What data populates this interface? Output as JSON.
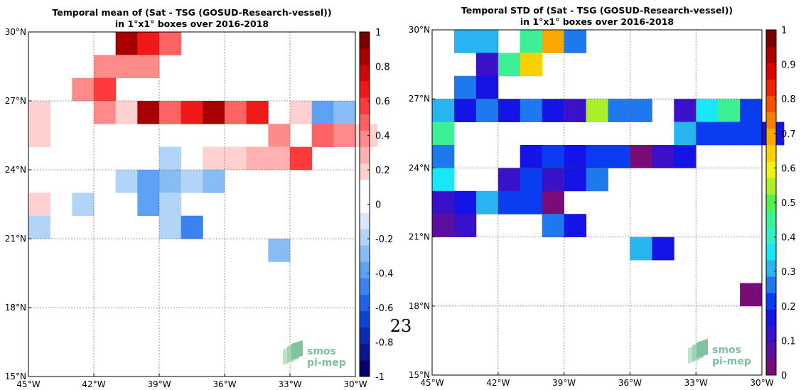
{
  "page_number": "23",
  "logo": {
    "line1": "smos",
    "line2": "pi-mep"
  },
  "chart_data": [
    {
      "type": "heatmap",
      "title": "Temporal mean of (Sat - TSG (GOSUD-Research-vessel))",
      "subtitle": "in 1°x1° boxes over 2016-2018",
      "xlim": [
        -45,
        -30
      ],
      "ylim": [
        15,
        30
      ],
      "x_tick_labels": [
        "45°W",
        "42°W",
        "39°W",
        "36°W",
        "33°W",
        "30°W"
      ],
      "y_tick_labels": [
        "15°N",
        "18°N",
        "21°N",
        "24°N",
        "27°N",
        "30°N"
      ],
      "grid": true,
      "colorbar": {
        "ticks": [
          -1,
          -0.8,
          -0.6,
          -0.4,
          -0.2,
          0,
          0.2,
          0.4,
          0.6,
          0.8,
          1
        ],
        "tick_labels": [
          "-1",
          "-0.8",
          "-0.6",
          "-0.4",
          "-0.2",
          "0",
          "0.2",
          "0.4",
          "0.6",
          "0.8",
          "1"
        ],
        "vmin": -1,
        "vmax": 1,
        "colors": [
          "#08006b",
          "#0a1690",
          "#0a2cb0",
          "#0a45cf",
          "#1e64e6",
          "#3c82ee",
          "#5ea0f2",
          "#88bcf5",
          "#b2d4f7",
          "#d8e8fb",
          "#ffffff",
          "#ffffff",
          "#ffd0d0",
          "#ffb0b0",
          "#ff8a8a",
          "#ff6262",
          "#ff3a3a",
          "#f01818",
          "#d00808",
          "#a80000",
          "#7a0000"
        ]
      },
      "cells": [
        {
          "lon": -41,
          "lat": 29,
          "v": 0.85
        },
        {
          "lon": -40,
          "lat": 29,
          "v": 0.7
        },
        {
          "lon": -39,
          "lat": 29,
          "v": 0.45
        },
        {
          "lon": -42,
          "lat": 28,
          "v": 0.35
        },
        {
          "lon": -41,
          "lat": 28,
          "v": 0.4
        },
        {
          "lon": -40,
          "lat": 28,
          "v": 0.4
        },
        {
          "lon": -43,
          "lat": 27,
          "v": 0.35
        },
        {
          "lon": -42,
          "lat": 27,
          "v": 0.6
        },
        {
          "lon": -45,
          "lat": 26,
          "v": 0.15
        },
        {
          "lon": -42,
          "lat": 26,
          "v": 0.35
        },
        {
          "lon": -41,
          "lat": 26,
          "v": 0.2
        },
        {
          "lon": -40,
          "lat": 26,
          "v": 0.85
        },
        {
          "lon": -39,
          "lat": 26,
          "v": 0.5
        },
        {
          "lon": -38,
          "lat": 26,
          "v": 0.65
        },
        {
          "lon": -37,
          "lat": 26,
          "v": 0.85
        },
        {
          "lon": -36,
          "lat": 26,
          "v": 0.5
        },
        {
          "lon": -35,
          "lat": 26,
          "v": 0.65
        },
        {
          "lon": -33,
          "lat": 26,
          "v": 0.15
        },
        {
          "lon": -32,
          "lat": 26,
          "v": -0.35
        },
        {
          "lon": -31,
          "lat": 26,
          "v": -0.25
        },
        {
          "lon": -45,
          "lat": 25,
          "v": 0.15
        },
        {
          "lon": -34,
          "lat": 25,
          "v": 0.35
        },
        {
          "lon": -32,
          "lat": 25,
          "v": 0.45
        },
        {
          "lon": -31,
          "lat": 25,
          "v": 0.35
        },
        {
          "lon": -30,
          "lat": 25,
          "v": 0.2
        },
        {
          "lon": -39,
          "lat": 24,
          "v": -0.15
        },
        {
          "lon": -37,
          "lat": 24,
          "v": 0.15
        },
        {
          "lon": -36,
          "lat": 24,
          "v": 0.15
        },
        {
          "lon": -35,
          "lat": 24,
          "v": 0.25
        },
        {
          "lon": -34,
          "lat": 24,
          "v": 0.25
        },
        {
          "lon": -33,
          "lat": 24,
          "v": 0.6
        },
        {
          "lon": -41,
          "lat": 23,
          "v": -0.15
        },
        {
          "lon": -40,
          "lat": 23,
          "v": -0.35
        },
        {
          "lon": -39,
          "lat": 23,
          "v": -0.25
        },
        {
          "lon": -38,
          "lat": 23,
          "v": -0.15
        },
        {
          "lon": -37,
          "lat": 23,
          "v": -0.25
        },
        {
          "lon": -45,
          "lat": 22,
          "v": 0.15
        },
        {
          "lon": -43,
          "lat": 22,
          "v": -0.15
        },
        {
          "lon": -40,
          "lat": 22,
          "v": -0.35
        },
        {
          "lon": -39,
          "lat": 22,
          "v": -0.15
        },
        {
          "lon": -45,
          "lat": 21,
          "v": -0.15
        },
        {
          "lon": -39,
          "lat": 21,
          "v": -0.15
        },
        {
          "lon": -38,
          "lat": 21,
          "v": -0.45
        },
        {
          "lon": -34,
          "lat": 20,
          "v": -0.25
        }
      ]
    },
    {
      "type": "heatmap",
      "title": "Temporal STD of (Sat - TSG (GOSUD-Research-vessel))",
      "subtitle": "in 1°x1° boxes over 2016-2018",
      "xlim": [
        -45,
        -30
      ],
      "ylim": [
        15,
        30
      ],
      "x_tick_labels": [
        "45°W",
        "42°W",
        "39°W",
        "36°W",
        "33°W",
        "30°W"
      ],
      "y_tick_labels": [
        "15°N",
        "18°N",
        "21°N",
        "24°N",
        "27°N",
        "30°N"
      ],
      "grid": true,
      "colorbar": {
        "ticks": [
          0,
          0.1,
          0.2,
          0.3,
          0.4,
          0.5,
          0.6,
          0.7,
          0.8,
          0.9,
          1
        ],
        "tick_labels": [
          "0",
          "0.1",
          "0.2",
          "0.3",
          "0.4",
          "0.5",
          "0.6",
          "0.7",
          "0.8",
          "0.9",
          "1"
        ],
        "vmin": 0,
        "vmax": 1,
        "colors": [
          "#7a0c7a",
          "#5a0fa0",
          "#3a10c8",
          "#1414e6",
          "#0a3cf0",
          "#1e78ee",
          "#28b4f0",
          "#18e8f5",
          "#30f0c8",
          "#3cf096",
          "#50f050",
          "#aaf028",
          "#f0f014",
          "#f8d000",
          "#f8a800",
          "#f88000",
          "#f85000",
          "#f02000",
          "#d80000",
          "#a80000",
          "#780000"
        ]
      },
      "cells": [
        {
          "lon": -44,
          "lat": 29,
          "v": 0.33
        },
        {
          "lon": -43,
          "lat": 29,
          "v": 0.33
        },
        {
          "lon": -41,
          "lat": 29,
          "v": 0.43
        },
        {
          "lon": -40,
          "lat": 29,
          "v": 0.67
        },
        {
          "lon": -39,
          "lat": 29,
          "v": 0.27
        },
        {
          "lon": -43,
          "lat": 28,
          "v": 0.13
        },
        {
          "lon": -42,
          "lat": 28,
          "v": 0.43
        },
        {
          "lon": -41,
          "lat": 28,
          "v": 0.63
        },
        {
          "lon": -44,
          "lat": 27,
          "v": 0.27
        },
        {
          "lon": -43,
          "lat": 27,
          "v": 0.18
        },
        {
          "lon": -45,
          "lat": 26,
          "v": 0.33
        },
        {
          "lon": -44,
          "lat": 26,
          "v": 0.18
        },
        {
          "lon": -43,
          "lat": 26,
          "v": 0.27
        },
        {
          "lon": -42,
          "lat": 26,
          "v": 0.18
        },
        {
          "lon": -41,
          "lat": 26,
          "v": 0.27
        },
        {
          "lon": -40,
          "lat": 26,
          "v": 0.18
        },
        {
          "lon": -39,
          "lat": 26,
          "v": 0.13
        },
        {
          "lon": -38,
          "lat": 26,
          "v": 0.53
        },
        {
          "lon": -37,
          "lat": 26,
          "v": 0.27
        },
        {
          "lon": -36,
          "lat": 26,
          "v": 0.27
        },
        {
          "lon": -34,
          "lat": 26,
          "v": 0.13
        },
        {
          "lon": -33,
          "lat": 26,
          "v": 0.38
        },
        {
          "lon": -32,
          "lat": 26,
          "v": 0.43
        },
        {
          "lon": -31,
          "lat": 26,
          "v": 0.23
        },
        {
          "lon": -45,
          "lat": 25,
          "v": 0.43
        },
        {
          "lon": -34,
          "lat": 25,
          "v": 0.33
        },
        {
          "lon": -33,
          "lat": 25,
          "v": 0.23
        },
        {
          "lon": -32,
          "lat": 25,
          "v": 0.23
        },
        {
          "lon": -31,
          "lat": 25,
          "v": 0.23
        },
        {
          "lon": -30,
          "lat": 25,
          "v": 0.18
        },
        {
          "lon": -45,
          "lat": 24,
          "v": 0.27
        },
        {
          "lon": -41,
          "lat": 24,
          "v": 0.18
        },
        {
          "lon": -40,
          "lat": 24,
          "v": 0.23
        },
        {
          "lon": -39,
          "lat": 24,
          "v": 0.18
        },
        {
          "lon": -38,
          "lat": 24,
          "v": 0.23
        },
        {
          "lon": -37,
          "lat": 24,
          "v": 0.23
        },
        {
          "lon": -36,
          "lat": 24,
          "v": 0.03
        },
        {
          "lon": -35,
          "lat": 24,
          "v": 0.13
        },
        {
          "lon": -34,
          "lat": 24,
          "v": 0.18
        },
        {
          "lon": -45,
          "lat": 23,
          "v": 0.38
        },
        {
          "lon": -42,
          "lat": 23,
          "v": 0.13
        },
        {
          "lon": -41,
          "lat": 23,
          "v": 0.23
        },
        {
          "lon": -40,
          "lat": 23,
          "v": 0.13
        },
        {
          "lon": -39,
          "lat": 23,
          "v": 0.18
        },
        {
          "lon": -38,
          "lat": 23,
          "v": 0.27
        },
        {
          "lon": -45,
          "lat": 22,
          "v": 0.13
        },
        {
          "lon": -44,
          "lat": 22,
          "v": 0.18
        },
        {
          "lon": -43,
          "lat": 22,
          "v": 0.33
        },
        {
          "lon": -42,
          "lat": 22,
          "v": 0.23
        },
        {
          "lon": -41,
          "lat": 22,
          "v": 0.23
        },
        {
          "lon": -40,
          "lat": 22,
          "v": 0.03
        },
        {
          "lon": -45,
          "lat": 21,
          "v": 0.08
        },
        {
          "lon": -44,
          "lat": 21,
          "v": 0.13
        },
        {
          "lon": -40,
          "lat": 21,
          "v": 0.27
        },
        {
          "lon": -39,
          "lat": 21,
          "v": 0.18
        },
        {
          "lon": -36,
          "lat": 20,
          "v": 0.33
        },
        {
          "lon": -35,
          "lat": 20,
          "v": 0.18
        },
        {
          "lon": -31,
          "lat": 18,
          "v": 0.03
        }
      ]
    }
  ]
}
